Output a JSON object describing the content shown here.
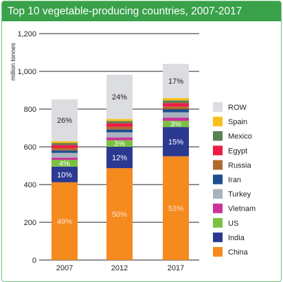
{
  "chart_data": {
    "type": "bar",
    "stacked": true,
    "title": "Top 10 vegetable-producing countries, 2007-2017",
    "ylabel": "million tonnes",
    "ylim": [
      0,
      1200
    ],
    "yticks": [
      0,
      200,
      400,
      600,
      800,
      1000,
      1200
    ],
    "ytick_labels": [
      "0",
      "200",
      "400",
      "600",
      "800",
      "1,000",
      "1,200"
    ],
    "grid": true,
    "legend_position": "right",
    "categories": [
      "2007",
      "2012",
      "2017"
    ],
    "series": [
      {
        "name": "China",
        "color": "#f58a1f",
        "values": [
          412,
          487,
          550
        ]
      },
      {
        "name": "India",
        "color": "#2b3990",
        "values": [
          83,
          113,
          155
        ]
      },
      {
        "name": "US",
        "color": "#7ac143",
        "values": [
          36,
          35,
          33
        ]
      },
      {
        "name": "Vietnam",
        "color": "#cc3399",
        "values": [
          12,
          15,
          17
        ]
      },
      {
        "name": "Turkey",
        "color": "#a7b3bd",
        "values": [
          25,
          27,
          28
        ]
      },
      {
        "name": "Iran",
        "color": "#1d4e8f",
        "values": [
          13,
          15,
          16
        ]
      },
      {
        "name": "Russia",
        "color": "#b06a2e",
        "values": [
          12,
          14,
          15
        ]
      },
      {
        "name": "Egypt",
        "color": "#ed1c45",
        "values": [
          17,
          19,
          18
        ]
      },
      {
        "name": "Mexico",
        "color": "#5d7f56",
        "values": [
          10,
          12,
          14
        ]
      },
      {
        "name": "Spain",
        "color": "#f7c11a",
        "values": [
          10,
          11,
          12
        ]
      },
      {
        "name": "ROW",
        "color": "#dcdde0",
        "values": [
          222,
          234,
          182
        ]
      }
    ],
    "data_labels": [
      {
        "series": "China",
        "labels": [
          "49%",
          "50%",
          "53%"
        ],
        "color": "#fde6cc"
      },
      {
        "series": "India",
        "labels": [
          "10%",
          "12%",
          "15%"
        ],
        "color": "#ffffff"
      },
      {
        "series": "US",
        "labels": [
          "4%",
          "3%",
          "3%"
        ],
        "color": "#ffffff"
      },
      {
        "series": "ROW",
        "labels": [
          "26%",
          "24%",
          "17%"
        ],
        "color": "#222222"
      }
    ],
    "legend_order": [
      "ROW",
      "Spain",
      "Mexico",
      "Egypt",
      "Russia",
      "Iran",
      "Turkey",
      "Vietnam",
      "US",
      "India",
      "China"
    ]
  }
}
